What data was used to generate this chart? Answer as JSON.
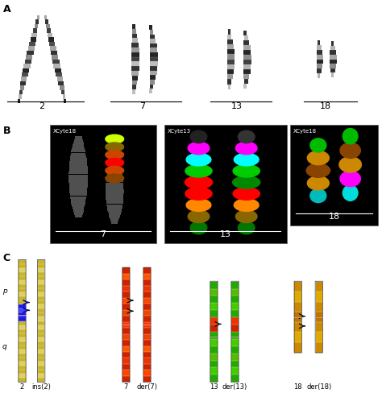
{
  "panel_A_label": "A",
  "panel_B_label": "B",
  "panel_C_label": "C",
  "chr_labels_A": [
    "2",
    "7",
    "13",
    "18"
  ],
  "xcyte_labels": [
    "XCyte18",
    "XCyte13",
    "XCyte18"
  ],
  "fluor_chr_labels": [
    "7",
    "13",
    "18"
  ],
  "chr_labels_C": [
    "2",
    "ins(2)",
    "7",
    "der(7)",
    "13",
    "der(13)",
    "18",
    "der(18)"
  ],
  "background_color": "#ffffff",
  "black_bg": "#000000",
  "chr2_bands_grays": [
    0.15,
    0.75,
    0.35,
    0.15,
    0.6,
    0.2,
    0.75,
    0.25,
    0.55,
    0.2,
    0.65,
    0.3,
    0.15,
    0.7,
    0.35,
    0.15,
    0.65,
    0.3,
    0.75,
    0.2,
    0.55,
    0.2,
    0.65,
    0.3,
    0.15,
    0.7
  ],
  "chr7_bands_grays": [
    0.75,
    0.2,
    0.55,
    0.15,
    0.65,
    0.2,
    0.75,
    0.25,
    0.15,
    0.6,
    0.2,
    0.7,
    0.2,
    0.55,
    0.15
  ],
  "chr13_bands_grays": [
    0.75,
    0.2,
    0.6,
    0.15,
    0.7,
    0.25,
    0.55,
    0.15,
    0.65,
    0.2,
    0.75,
    0.2
  ],
  "chr18_bands_grays": [
    0.7,
    0.2,
    0.55,
    0.15,
    0.65,
    0.2,
    0.7,
    0.2
  ],
  "chr2_ideo_colors": [
    "#c8b428",
    "#ddd060",
    "#c8b428",
    "#c8b428",
    "#ddd060",
    "#c8b428",
    "#c8b428",
    "#ddd060",
    "#c8b428",
    "#c8b428",
    "#ddd060",
    "#c8b428",
    "#c8b428",
    "#ddd060",
    "#c8b428",
    "#1a1aee",
    "#1a1aee",
    "#4444ff",
    "#1a1aee",
    "#c8b428",
    "#c8b428",
    "#ddd060",
    "#c8b428",
    "#c8b428",
    "#ddd060",
    "#c8b428",
    "#c8b428",
    "#ddd060",
    "#c8b428",
    "#c8b428"
  ],
  "ins2_ideo_colors": [
    "#c8b428",
    "#ddd060",
    "#c8b428",
    "#c8b428",
    "#ddd060",
    "#c8b428",
    "#c8b428",
    "#ddd060",
    "#c8b428",
    "#c8b428",
    "#ddd060",
    "#c8b428",
    "#c8b428",
    "#ddd060",
    "#c8b428",
    "#ddd060",
    "#c8b428",
    "#c8b428",
    "#ddd060",
    "#c8b428",
    "#c8b428",
    "#ddd060",
    "#c8b428",
    "#c8b428",
    "#ddd060",
    "#c8b428",
    "#c8b428",
    "#ddd060",
    "#c8b428",
    "#c8b428"
  ],
  "chr7_ideo_colors": [
    "#cc2200",
    "#ff4400",
    "#cc2200",
    "#ee3300",
    "#cc2200",
    "#ff5500",
    "#cc2200",
    "#ee4400",
    "#cc2200",
    "#ff3300",
    "#cc2200",
    "#ee4400",
    "#cc2200",
    "#ff4400",
    "#cc2200",
    "#ee3300",
    "#cc2200",
    "#ff5500",
    "#cc2200"
  ],
  "der7_ideo_colors": [
    "#cc2200",
    "#ff4400",
    "#cc2200",
    "#ee3300",
    "#cc2200",
    "#ff5500",
    "#cc2200",
    "#ee4400",
    "#cc2200",
    "#ff3300",
    "#cc2200",
    "#ee4400",
    "#cc2200",
    "#ff4400",
    "#cc2200",
    "#ee3300",
    "#cc2200",
    "#ff5500",
    "#cc2200"
  ],
  "chr13_ideo_colors": [
    "#22aa00",
    "#44cc00",
    "#22aa00",
    "#55bb00",
    "#22aa00",
    "#44cc00",
    "#22aa00",
    "#cc2200",
    "#ee3300",
    "#22aa00",
    "#44cc00",
    "#22aa00",
    "#55bb00",
    "#22aa00"
  ],
  "der13_ideo_colors": [
    "#22aa00",
    "#44cc00",
    "#22aa00",
    "#55bb00",
    "#22aa00",
    "#44cc00",
    "#22aa00",
    "#cc2200",
    "#ee3300",
    "#22aa00",
    "#44cc00",
    "#22aa00",
    "#55bb00",
    "#22aa00"
  ],
  "chr18_ideo_colors": [
    "#cc8800",
    "#ddaa00",
    "#cc8800",
    "#bb7700",
    "#cc8800",
    "#ddaa00",
    "#cc8800"
  ],
  "der18_ideo_colors": [
    "#cc8800",
    "#ddaa00",
    "#cc8800",
    "#bb7700",
    "#cc8800",
    "#ddaa00",
    "#cc8800"
  ]
}
